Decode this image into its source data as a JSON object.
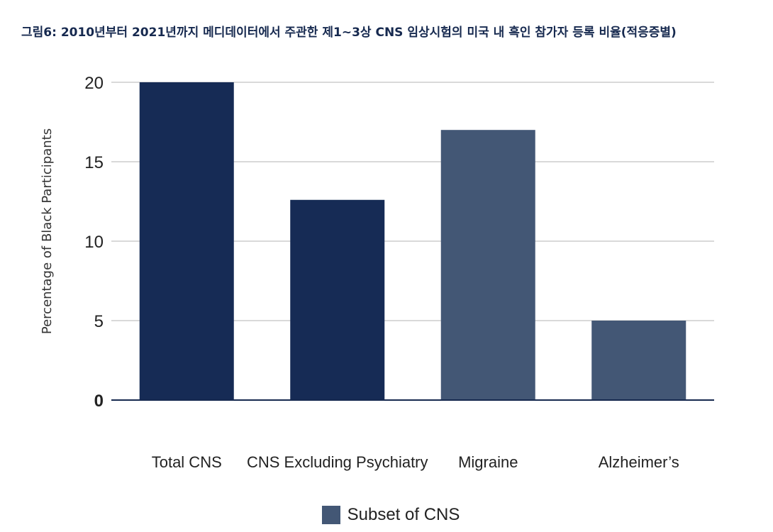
{
  "title": "그림6: 2010년부터 2021년까지 메디데이터에서 주관한 제1~3상 CNS 임상시험의 미국 내 흑인 참가자 등록 비율(적응증별)",
  "colors": {
    "total_bar": "#162b55",
    "subset_bar": "#435775",
    "grid": "#b3b3b3",
    "axis": "#16294f"
  },
  "legend": {
    "label": "Subset of CNS",
    "color": "#435775"
  },
  "chart_data": {
    "type": "bar",
    "title": "그림6: 2010년부터 2021년까지 메디데이터에서 주관한 제1~3상 CNS 임상시험의 미국 내 흑인 참가자 등록 비율(적응증별)",
    "xlabel": "",
    "ylabel": "Percentage of Black Participants",
    "categories": [
      "Total CNS",
      "CNS Excluding Psychiatry",
      "Migraine",
      "Alzheimer’s"
    ],
    "values": [
      20,
      12.6,
      17,
      5
    ],
    "bar_colors": [
      "#162b55",
      "#162b55",
      "#435775",
      "#435775"
    ],
    "yticks": [
      0,
      5,
      10,
      15,
      20
    ],
    "ylim": [
      0,
      20
    ],
    "grid": true,
    "legend_position": "bottom",
    "legend": [
      "Subset of CNS"
    ]
  }
}
